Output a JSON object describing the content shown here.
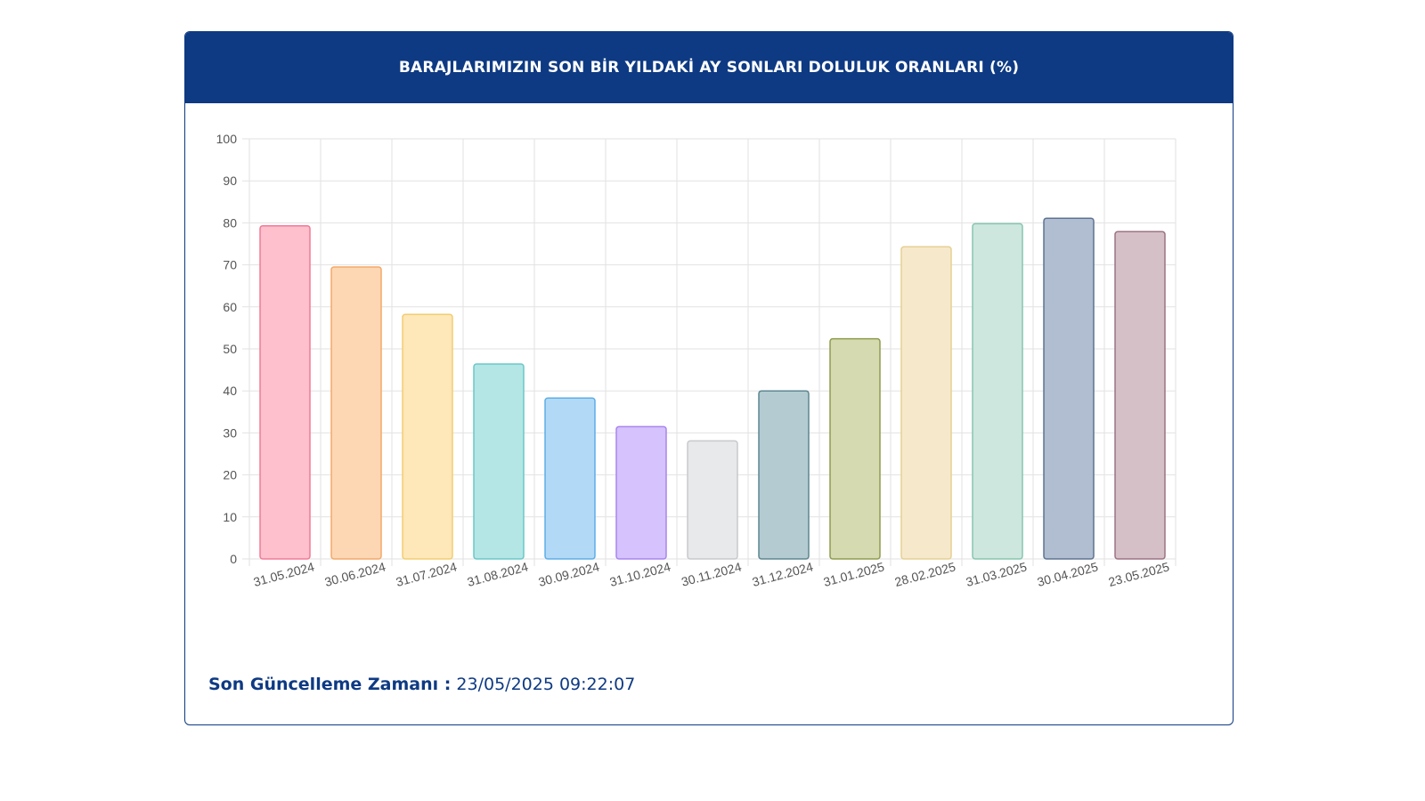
{
  "header": {
    "title": "BARAJLARIMIZIN SON BİR YILDAKİ AY SONLARI DOLULUK ORANLARI (%)"
  },
  "footer": {
    "label": "Son Güncelleme Zamanı :",
    "value": "23/05/2025 09:22:07"
  },
  "colors": {
    "header_bg": "#0e3a83",
    "footer_text": "#0e3a83",
    "grid": "#e2e2e2",
    "tick_text": "#555555"
  },
  "chart_data": {
    "type": "bar",
    "title": "BARAJLARIMIZIN SON BİR YILDAKİ AY SONLARI DOLULUK ORANLARI (%)",
    "xlabel": "",
    "ylabel": "",
    "ylim": [
      0,
      100
    ],
    "yticks": [
      0,
      10,
      20,
      30,
      40,
      50,
      60,
      70,
      80,
      90,
      100
    ],
    "grid": true,
    "legend": "none",
    "categories": [
      "31.05.2024",
      "30.06.2024",
      "31.07.2024",
      "31.08.2024",
      "30.09.2024",
      "31.10.2024",
      "30.11.2024",
      "31.12.2024",
      "31.01.2025",
      "28.02.2025",
      "31.03.2025",
      "30.04.2025",
      "23.05.2025"
    ],
    "values": [
      79.3,
      69.5,
      58.2,
      46.4,
      38.3,
      31.5,
      28.1,
      40.0,
      52.4,
      74.3,
      79.8,
      81.1,
      77.9
    ],
    "bar_fills": [
      "#fec0cd",
      "#fdd7b3",
      "#fee7b8",
      "#b4e6e6",
      "#b2d9f6",
      "#d6c2fc",
      "#e8e9eb",
      "#b3cbd1",
      "#d5dab1",
      "#f6e9cb",
      "#cde7de",
      "#b1bdd0",
      "#d6c0c8"
    ],
    "bar_strokes": [
      "#f07a96",
      "#f4a868",
      "#f2cd70",
      "#6bc7c7",
      "#5eaee6",
      "#a985ee",
      "#c7c9cc",
      "#5d8691",
      "#8e9c4e",
      "#e6cf93",
      "#86c6ae",
      "#5e7391",
      "#9c7383"
    ]
  }
}
